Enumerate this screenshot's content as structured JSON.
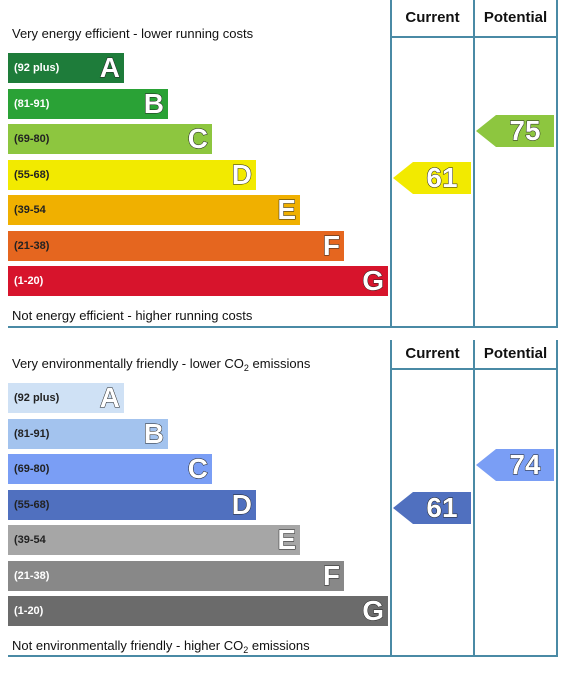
{
  "chart_data": [
    {
      "type": "bar",
      "top_text": "Very energy efficient - lower running costs",
      "bottom_text": "Not energy efficient - higher running costs",
      "columns": [
        "Current",
        "Potential"
      ],
      "bands": [
        {
          "letter": "A",
          "range": "(92 plus)",
          "color": "#1e7c3a",
          "range_color": "#ffffff"
        },
        {
          "letter": "B",
          "range": "(81-91)",
          "color": "#2aa236",
          "range_color": "#ffffff"
        },
        {
          "letter": "C",
          "range": "(69-80)",
          "color": "#8dc63f",
          "range_color": "#222222"
        },
        {
          "letter": "D",
          "range": "(55-68)",
          "color": "#f2ea00",
          "range_color": "#222222"
        },
        {
          "letter": "E",
          "range": "(39-54",
          "color": "#f0b000",
          "range_color": "#222222"
        },
        {
          "letter": "F",
          "range": "(21-38)",
          "color": "#e5661f",
          "range_color": "#222222"
        },
        {
          "letter": "G",
          "range": "(1-20)",
          "color": "#d7142c",
          "range_color": "#ffffff"
        }
      ],
      "current": {
        "value": "61",
        "band": "D",
        "color": "#f2ea00"
      },
      "potential": {
        "value": "75",
        "band": "C",
        "color": "#8dc63f"
      }
    },
    {
      "type": "bar",
      "top_text": "Very environmentally friendly - lower CO2 emissions",
      "bottom_text": "Not environmentally friendly - higher CO2 emissions",
      "columns": [
        "Current",
        "Potential"
      ],
      "bands": [
        {
          "letter": "A",
          "range": "(92 plus)",
          "color": "#cfe1f5",
          "range_color": "#222222"
        },
        {
          "letter": "B",
          "range": "(81-91)",
          "color": "#a3c3ee",
          "range_color": "#222222"
        },
        {
          "letter": "C",
          "range": "(69-80)",
          "color": "#7a9ef5",
          "range_color": "#222222"
        },
        {
          "letter": "D",
          "range": "(55-68)",
          "color": "#5070bf",
          "range_color": "#222222"
        },
        {
          "letter": "E",
          "range": "(39-54",
          "color": "#a6a6a6",
          "range_color": "#222222"
        },
        {
          "letter": "F",
          "range": "(21-38)",
          "color": "#888888",
          "range_color": "#ffffff"
        },
        {
          "letter": "G",
          "range": "(1-20)",
          "color": "#6b6b6b",
          "range_color": "#ffffff"
        }
      ],
      "current": {
        "value": "61",
        "band": "D",
        "color": "#5070bf"
      },
      "potential": {
        "value": "74",
        "band": "C",
        "color": "#7a9ef5"
      }
    }
  ]
}
